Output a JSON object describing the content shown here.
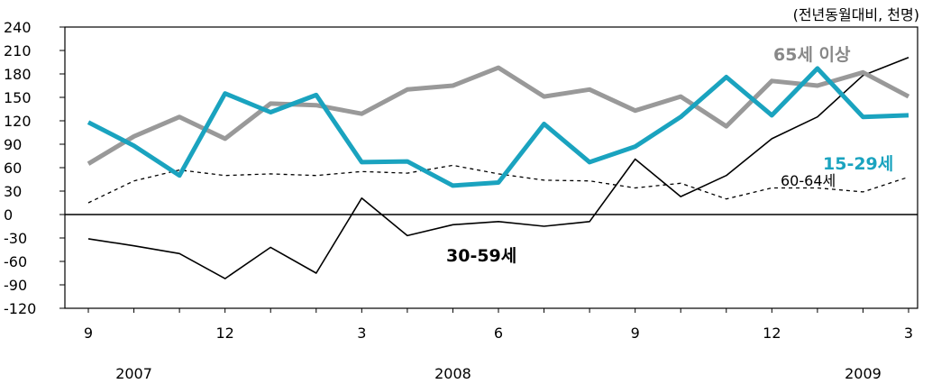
{
  "chart_data": {
    "type": "line",
    "unit_note": "(전년동월대비, 천명)",
    "x": [
      "2007-09",
      "2007-10",
      "2007-11",
      "2007-12",
      "2008-01",
      "2008-02",
      "2008-03",
      "2008-04",
      "2008-05",
      "2008-06",
      "2008-07",
      "2008-08",
      "2008-09",
      "2008-10",
      "2008-11",
      "2008-12",
      "2009-01",
      "2009-02",
      "2009-03"
    ],
    "x_tick_labels": [
      {
        "x": "2007-09",
        "label": "9"
      },
      {
        "x": "2007-12",
        "label": "12"
      },
      {
        "x": "2008-03",
        "label": "3"
      },
      {
        "x": "2008-06",
        "label": "6"
      },
      {
        "x": "2008-09",
        "label": "9"
      },
      {
        "x": "2008-12",
        "label": "12"
      },
      {
        "x": "2009-03",
        "label": "3"
      }
    ],
    "year_labels": [
      {
        "x": "2007-10",
        "label": "2007"
      },
      {
        "x": "2008-05",
        "label": "2008"
      },
      {
        "x": "2009-02",
        "label": "2009"
      }
    ],
    "ylim": [
      -120,
      240
    ],
    "yticks": [
      240,
      210,
      180,
      150,
      120,
      90,
      60,
      30,
      0,
      -30,
      -60,
      -90,
      -120
    ],
    "grid": false,
    "series": [
      {
        "name": "65세 이상",
        "color": "#999999",
        "style": "thick",
        "values": [
          65,
          100,
          125,
          97,
          142,
          140,
          129,
          160,
          165,
          188,
          151,
          160,
          133,
          151,
          113,
          171,
          165,
          182,
          151
        ]
      },
      {
        "name": "15-29세",
        "color": "#1aa3bf",
        "style": "thick",
        "values": [
          118,
          88,
          50,
          155,
          131,
          153,
          67,
          68,
          37,
          41,
          116,
          67,
          87,
          125,
          176,
          127,
          187,
          125,
          127
        ]
      },
      {
        "name": "60-64세",
        "color": "#000000",
        "style": "dashed",
        "values": [
          15,
          43,
          57,
          50,
          52,
          50,
          55,
          53,
          63,
          52,
          44,
          43,
          34,
          40,
          20,
          34,
          34,
          29,
          48
        ]
      },
      {
        "name": "30-59세",
        "color": "#000000",
        "style": "thin",
        "values": [
          -31,
          -40,
          -50,
          -82,
          -42,
          -75,
          21,
          -27,
          -13,
          -9,
          -15,
          -9,
          71,
          23,
          50,
          97,
          125,
          178,
          201
        ]
      }
    ],
    "annotations": [
      {
        "series": "65세 이상",
        "text": "65세 이상",
        "color": "#888888"
      },
      {
        "series": "15-29세",
        "text": "15-29세",
        "color": "#1aa3bf"
      },
      {
        "series": "60-64세",
        "text": "60-64세",
        "color": "#000000"
      },
      {
        "series": "30-59세",
        "text": "30-59세",
        "color": "#000000"
      }
    ]
  }
}
